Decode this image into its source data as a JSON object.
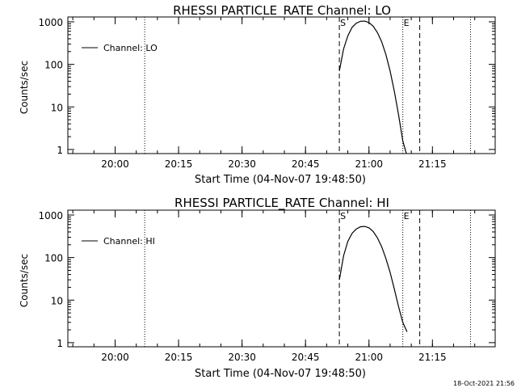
{
  "footer": {
    "timestamp": "18-Oct-2021 21:56"
  },
  "chart_data": [
    {
      "type": "line",
      "title": "RHESSI PARTICLE_RATE Channel: LO",
      "xlabel": "Start Time (04-Nov-07 19:48:50)",
      "ylabel": "Counts/sec",
      "y_scale": "log",
      "ylim": [
        0.8,
        1300
      ],
      "xlim_minutes_after_start": [
        0,
        101
      ],
      "x_ticks": [
        "20:00",
        "20:15",
        "20:30",
        "20:45",
        "21:00",
        "21:15"
      ],
      "y_ticks": [
        "1",
        "10",
        "100",
        "1000"
      ],
      "legend": {
        "position": "top-left",
        "entries": [
          "Channel: LO"
        ]
      },
      "vlines": {
        "dotted": [
          "20:07",
          "21:08",
          "21:24"
        ],
        "dashed": [
          "20:53",
          "21:12"
        ]
      },
      "markers": [
        {
          "label": "S",
          "time": "20:53"
        },
        {
          "label": "E",
          "time": "21:08"
        }
      ],
      "series": [
        {
          "name": "Channel: LO",
          "x": [
            "20:53",
            "20:54",
            "20:55",
            "20:56",
            "20:57",
            "20:58",
            "20:59",
            "21:00",
            "21:01",
            "21:02",
            "21:03",
            "21:04",
            "21:05",
            "21:06",
            "21:07",
            "21:08",
            "21:09"
          ],
          "y": [
            70,
            230,
            470,
            740,
            930,
            1030,
            1040,
            960,
            790,
            560,
            340,
            170,
            70,
            23,
            6.5,
            1.6,
            0.7
          ]
        }
      ]
    },
    {
      "type": "line",
      "title": "RHESSI PARTICLE_RATE Channel: HI",
      "xlabel": "Start Time (04-Nov-07 19:48:50)",
      "ylabel": "Counts/sec",
      "y_scale": "log",
      "ylim": [
        0.8,
        1300
      ],
      "xlim_minutes_after_start": [
        0,
        101
      ],
      "x_ticks": [
        "20:00",
        "20:15",
        "20:30",
        "20:45",
        "21:00",
        "21:15"
      ],
      "y_ticks": [
        "1",
        "10",
        "100",
        "1000"
      ],
      "legend": {
        "position": "top-left",
        "entries": [
          "Channel: HI"
        ]
      },
      "vlines": {
        "dotted": [
          "20:07",
          "21:08",
          "21:24"
        ],
        "dashed": [
          "20:53",
          "21:12"
        ]
      },
      "markers": [
        {
          "label": "S",
          "time": "20:53"
        },
        {
          "label": "E",
          "time": "21:08"
        }
      ],
      "series": [
        {
          "name": "Channel: HI",
          "x": [
            "20:53",
            "20:54",
            "20:55",
            "20:56",
            "20:57",
            "20:58",
            "20:59",
            "21:00",
            "21:01",
            "21:02",
            "21:03",
            "21:04",
            "21:05",
            "21:06",
            "21:07",
            "21:08",
            "21:09"
          ],
          "y": [
            30,
            110,
            240,
            370,
            470,
            530,
            540,
            500,
            410,
            290,
            180,
            95,
            45,
            18,
            7,
            3,
            1.8
          ]
        }
      ]
    }
  ]
}
